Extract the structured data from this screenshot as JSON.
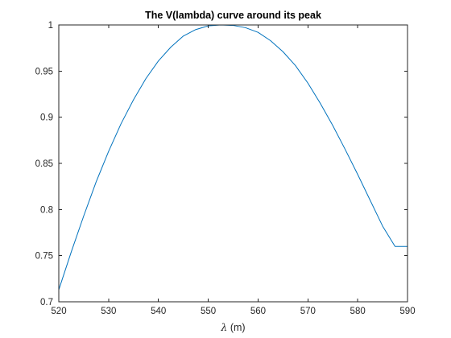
{
  "chart_data": {
    "type": "line",
    "title": "The V(lambda) curve around its peak",
    "xlabel_symbol": "λ",
    "xlabel_unit": " (m)",
    "ylabel": "",
    "xlim": [
      520,
      590
    ],
    "ylim": [
      0.7,
      1.0
    ],
    "xticks": [
      520,
      530,
      540,
      550,
      560,
      570,
      580,
      590
    ],
    "xtick_labels": [
      "520",
      "530",
      "540",
      "550",
      "560",
      "570",
      "580",
      "590"
    ],
    "yticks": [
      0.7,
      0.75,
      0.8,
      0.85,
      0.9,
      0.95,
      1.0
    ],
    "ytick_labels": [
      "0.7",
      "0.75",
      "0.8",
      "0.85",
      "0.9",
      "0.95",
      "1"
    ],
    "grid": false,
    "series": [
      {
        "color": "#0072bd",
        "x": [
          520,
          522.5,
          525,
          527.5,
          530,
          532.5,
          535,
          537.5,
          540,
          542.5,
          545,
          547.5,
          550,
          552.5,
          555,
          557.5,
          560,
          562.5,
          565,
          567.5,
          570,
          572.5,
          575,
          577.5,
          580,
          582.5,
          585,
          587.5,
          590
        ],
        "y": [
          0.713,
          0.754,
          0.793,
          0.83,
          0.863,
          0.893,
          0.919,
          0.942,
          0.961,
          0.976,
          0.988,
          0.995,
          0.999,
          1.0,
          0.9995,
          0.997,
          0.992,
          0.983,
          0.971,
          0.956,
          0.937,
          0.915,
          0.891,
          0.865,
          0.838,
          0.81,
          0.782,
          0.76,
          0.76
        ]
      }
    ]
  }
}
